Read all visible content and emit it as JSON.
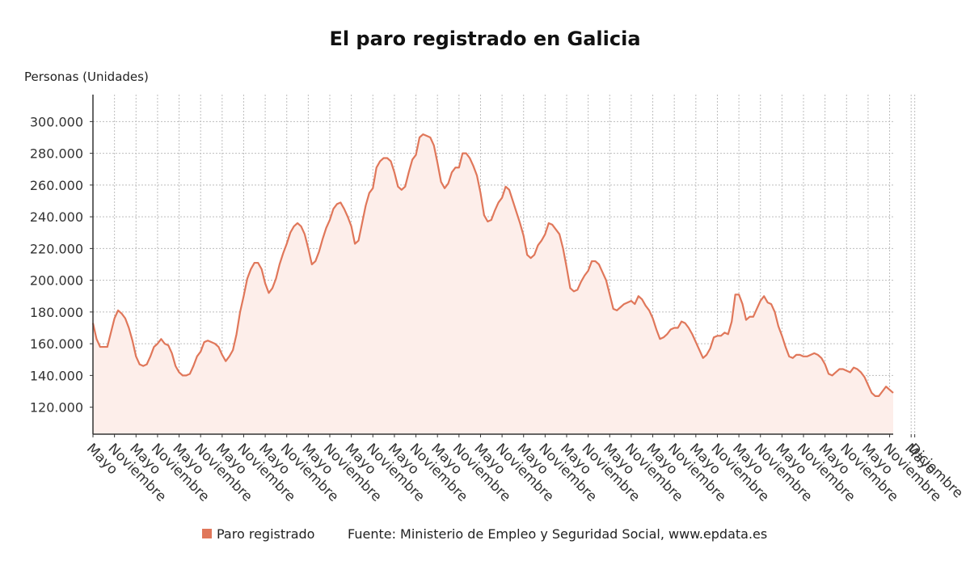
{
  "colors": {
    "line": "#e0775a",
    "area": "#fdeeea",
    "grid": "#bdbdbd",
    "axis": "#333333"
  },
  "chart_data": {
    "type": "area",
    "title": "El paro registrado en Galicia",
    "ylabel": "Personas (Unidades)",
    "ylim": [
      103000,
      317000
    ],
    "yticks": [
      120000,
      140000,
      160000,
      180000,
      200000,
      220000,
      240000,
      260000,
      280000,
      300000
    ],
    "ytick_labels": [
      "120.000",
      "140.000",
      "160.000",
      "180.000",
      "200.000",
      "220.000",
      "240.000",
      "260.000",
      "280.000",
      "300.000"
    ],
    "xticks": [
      {
        "i": 0,
        "label": "Mayo"
      },
      {
        "i": 6,
        "label": "Noviembre"
      },
      {
        "i": 12,
        "label": "Mayo"
      },
      {
        "i": 18,
        "label": "Noviembre"
      },
      {
        "i": 24,
        "label": "Mayo"
      },
      {
        "i": 30,
        "label": "Noviembre"
      },
      {
        "i": 36,
        "label": "Mayo"
      },
      {
        "i": 42,
        "label": "Noviembre"
      },
      {
        "i": 48,
        "label": "Mayo"
      },
      {
        "i": 54,
        "label": "Noviembre"
      },
      {
        "i": 60,
        "label": "Mayo"
      },
      {
        "i": 66,
        "label": "Noviembre"
      },
      {
        "i": 72,
        "label": "Mayo"
      },
      {
        "i": 78,
        "label": "Noviembre"
      },
      {
        "i": 84,
        "label": "Mayo"
      },
      {
        "i": 90,
        "label": "Noviembre"
      },
      {
        "i": 96,
        "label": "Mayo"
      },
      {
        "i": 102,
        "label": "Noviembre"
      },
      {
        "i": 108,
        "label": "Mayo"
      },
      {
        "i": 114,
        "label": "Noviembre"
      },
      {
        "i": 120,
        "label": "Mayo"
      },
      {
        "i": 126,
        "label": "Noviembre"
      },
      {
        "i": 132,
        "label": "Mayo"
      },
      {
        "i": 138,
        "label": "Noviembre"
      },
      {
        "i": 144,
        "label": "Mayo"
      },
      {
        "i": 150,
        "label": "Noviembre"
      },
      {
        "i": 156,
        "label": "Mayo"
      },
      {
        "i": 162,
        "label": "Noviembre"
      },
      {
        "i": 168,
        "label": "Mayo"
      },
      {
        "i": 174,
        "label": "Noviembre"
      },
      {
        "i": 180,
        "label": "Mayo"
      },
      {
        "i": 186,
        "label": "Noviembre"
      },
      {
        "i": 192,
        "label": "Mayo"
      },
      {
        "i": 198,
        "label": "Noviembre"
      },
      {
        "i": 204,
        "label": "Mayo"
      },
      {
        "i": 210,
        "label": "Noviembre"
      },
      {
        "i": 216,
        "label": "Mayo"
      },
      {
        "i": 222,
        "label": "Noviembre"
      },
      {
        "i": 228,
        "label": "Mayo"
      },
      {
        "i": 229,
        "label": "Diciembre"
      }
    ],
    "grid": true,
    "legend_position": "bottom",
    "series": [
      {
        "name": "Paro registrado",
        "values": [
          173000,
          163000,
          158000,
          158000,
          158000,
          167000,
          176000,
          181000,
          179000,
          176000,
          170000,
          162000,
          152000,
          147000,
          146000,
          147000,
          152000,
          158000,
          160000,
          163000,
          160000,
          159000,
          154000,
          146000,
          142000,
          140000,
          140000,
          141000,
          146000,
          152000,
          155000,
          161000,
          162000,
          161000,
          160000,
          158000,
          153000,
          149000,
          152000,
          156000,
          166000,
          180000,
          190000,
          201000,
          207000,
          211000,
          211000,
          207000,
          198000,
          192000,
          195000,
          201000,
          210000,
          217000,
          223000,
          230000,
          234000,
          236000,
          234000,
          229000,
          220000,
          210000,
          212000,
          218000,
          226000,
          233000,
          238000,
          245000,
          248000,
          249000,
          245000,
          240000,
          234000,
          223000,
          225000,
          236000,
          247000,
          255000,
          258000,
          271000,
          275000,
          277000,
          277000,
          275000,
          268000,
          259000,
          257000,
          259000,
          268000,
          276000,
          279000,
          290000,
          292000,
          291000,
          290000,
          285000,
          274000,
          262000,
          258000,
          261000,
          268000,
          271000,
          271000,
          280000,
          280000,
          277000,
          272000,
          266000,
          255000,
          241000,
          237000,
          238000,
          244000,
          249000,
          252000,
          259000,
          257000,
          250000,
          243000,
          236000,
          228000,
          216000,
          214000,
          216000,
          222000,
          225000,
          229000,
          236000,
          235000,
          232000,
          229000,
          220000,
          208000,
          195000,
          193000,
          194000,
          199000,
          203000,
          206000,
          212000,
          212000,
          210000,
          205000,
          200000,
          191000,
          182000,
          181000,
          183000,
          185000,
          186000,
          187000,
          185000,
          190000,
          188000,
          184000,
          181000,
          176000,
          169000,
          163000,
          164000,
          166000,
          169000,
          170000,
          170000,
          174000,
          173000,
          170000,
          166000,
          161000,
          156000,
          151000,
          153000,
          157000,
          164000,
          165000,
          165000,
          167000,
          166000,
          174000,
          191000,
          191000,
          185000,
          175000,
          177000,
          177000,
          182000,
          187000,
          190000,
          186000,
          185000,
          180000,
          171000,
          165000,
          158000,
          152000,
          151000,
          153000,
          153000,
          152000,
          152000,
          153000,
          154000,
          153000,
          151000,
          147000,
          141000,
          140000,
          142000,
          144000,
          144000,
          143000,
          142000,
          145000,
          144000,
          142000,
          139000,
          134000,
          129000,
          127000,
          127000,
          130000,
          133000,
          131000,
          129000
        ]
      }
    ],
    "legend": [
      "Paro registrado"
    ],
    "source_text": "Fuente: Ministerio de Empleo y Seguridad Social, ",
    "source_link": "www.epdata.es"
  }
}
